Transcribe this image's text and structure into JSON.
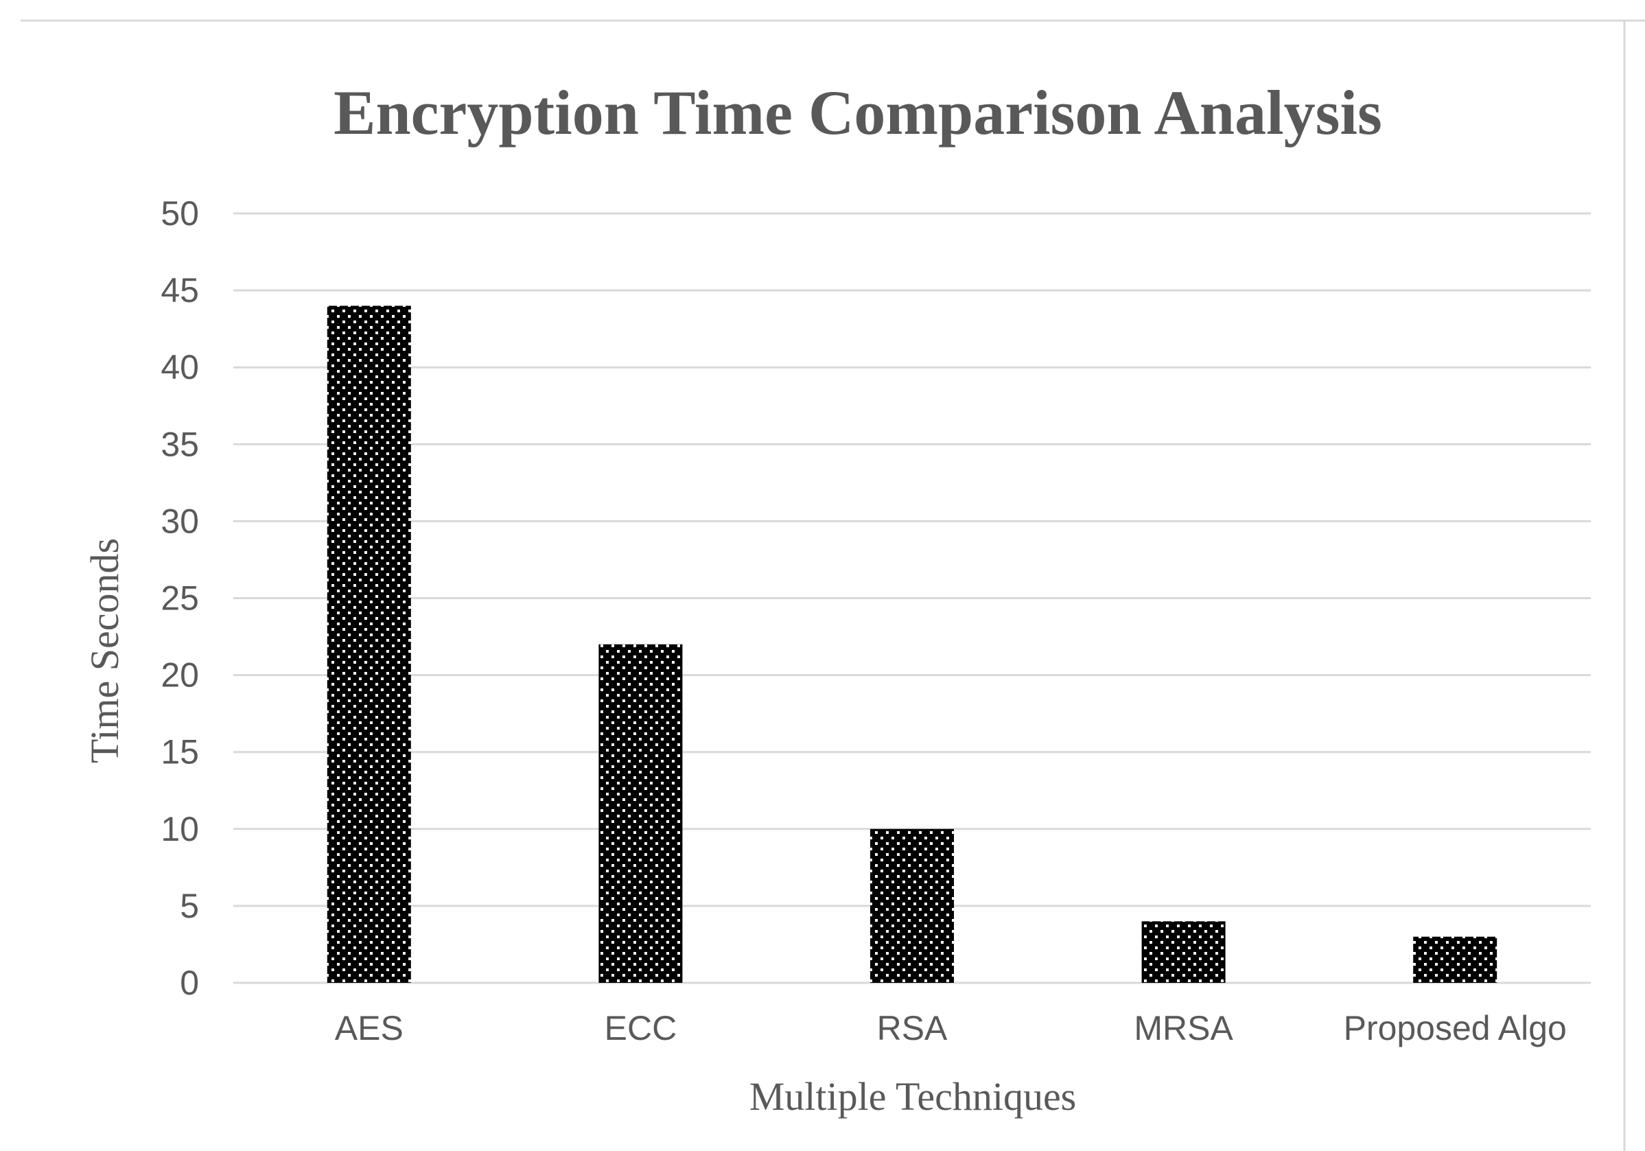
{
  "chart_data": {
    "type": "bar",
    "title": "Encryption Time Comparison Analysis",
    "xlabel": "Multiple Techniques",
    "ylabel": "Time Seconds",
    "categories": [
      "AES",
      "ECC",
      "RSA",
      "MRSA",
      "Proposed Algo"
    ],
    "values": [
      44,
      22,
      10,
      4,
      3
    ],
    "ylim": [
      0,
      50
    ],
    "yticks": [
      "0",
      "5",
      "10",
      "15",
      "20",
      "25",
      "30",
      "35",
      "40",
      "45",
      "50"
    ],
    "grid": true,
    "legend": "none",
    "colors": {
      "bar_fill": "#000000",
      "bar_dots": "#ffffff",
      "gridline": "#d9d9d9",
      "text": "#595959",
      "frame": "#d9d9d9"
    }
  }
}
